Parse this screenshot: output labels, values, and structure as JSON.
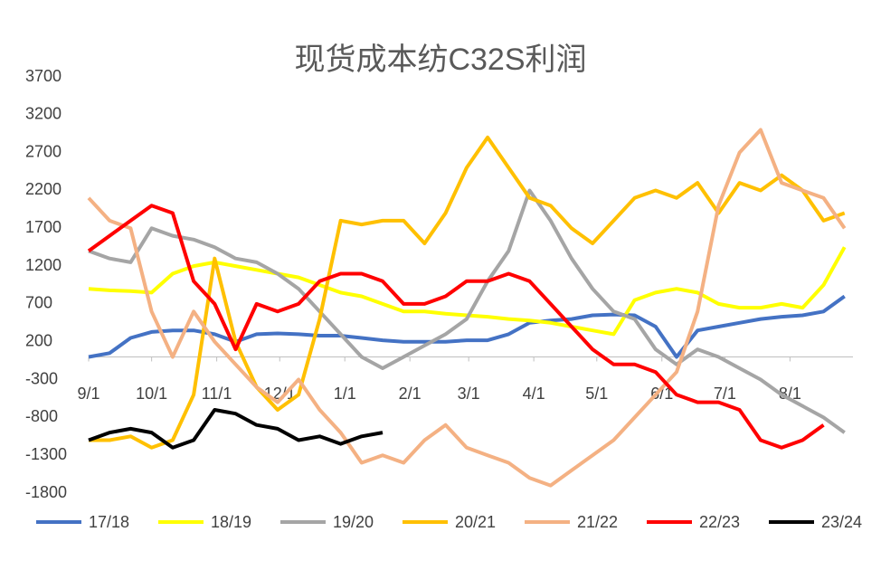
{
  "chart_data": {
    "type": "line",
    "title": "现货成本纺C32S利润",
    "x": [
      0,
      10,
      20,
      30,
      40,
      50,
      60,
      70,
      80,
      90,
      100,
      110,
      120,
      130,
      140,
      150,
      160,
      170,
      180,
      190,
      200,
      210,
      220,
      230,
      240,
      250,
      260,
      270,
      280,
      290,
      300,
      310,
      320,
      330,
      340,
      350,
      360
    ],
    "xlim": [
      0,
      364
    ],
    "xticks": [
      {
        "value": 0,
        "label": "9/1"
      },
      {
        "value": 30,
        "label": "10/1"
      },
      {
        "value": 61,
        "label": "11/1"
      },
      {
        "value": 91,
        "label": "12/1"
      },
      {
        "value": 122,
        "label": "1/1"
      },
      {
        "value": 153,
        "label": "2/1"
      },
      {
        "value": 181,
        "label": "3/1"
      },
      {
        "value": 212,
        "label": "4/1"
      },
      {
        "value": 242,
        "label": "5/1"
      },
      {
        "value": 273,
        "label": "6/1"
      },
      {
        "value": 303,
        "label": "7/1"
      },
      {
        "value": 334,
        "label": "8/1"
      }
    ],
    "ylim": [
      -1800,
      3700
    ],
    "yticks": [
      3700,
      3200,
      2700,
      2200,
      1700,
      1200,
      700,
      200,
      -300,
      -800,
      -1300,
      -1800
    ],
    "legend": "bottom",
    "series": [
      {
        "name": "17/18",
        "color": "#4472c4",
        "values": [
          0,
          50,
          250,
          330,
          350,
          350,
          300,
          200,
          300,
          310,
          300,
          280,
          280,
          250,
          220,
          200,
          200,
          200,
          220,
          220,
          300,
          450,
          480,
          500,
          550,
          560,
          550,
          400,
          0,
          350,
          400,
          450,
          500,
          530,
          550,
          600,
          800
        ]
      },
      {
        "name": "18/19",
        "color": "#ffff00",
        "values": [
          900,
          880,
          870,
          850,
          1100,
          1200,
          1250,
          1200,
          1150,
          1100,
          1050,
          950,
          850,
          800,
          700,
          600,
          600,
          570,
          550,
          530,
          500,
          480,
          450,
          400,
          350,
          300,
          750,
          850,
          900,
          850,
          700,
          650,
          650,
          700,
          650,
          950,
          1450
        ]
      },
      {
        "name": "19/20",
        "color": "#a5a5a5",
        "values": [
          1400,
          1300,
          1250,
          1700,
          1600,
          1550,
          1450,
          1300,
          1250,
          1100,
          900,
          600,
          300,
          0,
          -150,
          0,
          150,
          300,
          500,
          1000,
          1400,
          2200,
          1800,
          1300,
          900,
          600,
          500,
          100,
          -100,
          100,
          0,
          -150,
          -300,
          -500,
          -650,
          -800,
          -1000
        ]
      },
      {
        "name": "20/21",
        "color": "#ffc000",
        "values": [
          -1100,
          -1100,
          -1050,
          -1200,
          -1100,
          -500,
          1300,
          200,
          -400,
          -700,
          -500,
          500,
          1800,
          1750,
          1800,
          1800,
          1500,
          1900,
          2500,
          2900,
          2500,
          2100,
          2000,
          1700,
          1500,
          1800,
          2100,
          2200,
          2100,
          2300,
          1900,
          2300,
          2200,
          2400,
          2200,
          1800,
          1900
        ]
      },
      {
        "name": "21/22",
        "color": "#f4b183",
        "values": [
          2100,
          1800,
          1700,
          600,
          0,
          600,
          200,
          -100,
          -400,
          -600,
          -300,
          -700,
          -1000,
          -1400,
          -1300,
          -1400,
          -1100,
          -900,
          -1200,
          -1300,
          -1400,
          -1600,
          -1700,
          -1500,
          -1300,
          -1100,
          -800,
          -500,
          -200,
          600,
          2000,
          2700,
          3000,
          2300,
          2200,
          2100,
          1700
        ]
      },
      {
        "name": "22/23",
        "color": "#ff0000",
        "values": [
          1400,
          1600,
          1800,
          2000,
          1900,
          1000,
          700,
          100,
          700,
          600,
          700,
          1000,
          1100,
          1100,
          1000,
          700,
          700,
          800,
          1000,
          1000,
          1100,
          1000,
          700,
          400,
          100,
          -100,
          -100,
          -200,
          -500,
          -600,
          -600,
          -700,
          -1100,
          -1200,
          -1100,
          -900,
          null
        ]
      },
      {
        "name": "23/24",
        "color": "#000000",
        "values": [
          -1100,
          -1000,
          -950,
          -1000,
          -1200,
          -1100,
          -700,
          -750,
          -900,
          -950,
          -1100,
          -1050,
          -1150,
          -1050,
          -1000,
          null,
          null,
          null,
          null,
          null,
          null,
          null,
          null,
          null,
          null,
          null,
          null,
          null,
          null,
          null,
          null,
          null,
          null,
          null,
          null,
          null,
          null
        ]
      }
    ]
  }
}
